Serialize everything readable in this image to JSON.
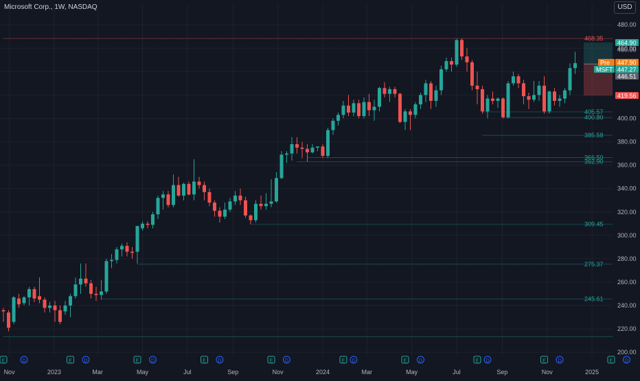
{
  "header": {
    "title": "Microsoft Corp., 1W, NASDAQ",
    "currency": "USD"
  },
  "colors": {
    "background": "#131722",
    "up": "#26a69a",
    "down": "#ef5350",
    "grid": "#1e222d",
    "axis_text": "#b2b5be",
    "premarket": "#f57f17",
    "ticker_badge": "#26a69a",
    "gray_badge": "#5d606b"
  },
  "chart_data": {
    "type": "candlestick",
    "title": "Microsoft Corp., 1W, NASDAQ",
    "ylim": [
      196,
      486
    ],
    "y_ticks": [
      200,
      220,
      240,
      260,
      280,
      300,
      320,
      340,
      360,
      380,
      400,
      420,
      440,
      460,
      480
    ],
    "x_tick_labels": [
      "Nov",
      "2023",
      "Mar",
      "May",
      "Jul",
      "Sep",
      "Nov",
      "2024",
      "Mar",
      "May",
      "Jul",
      "Sep",
      "Nov",
      "2025"
    ],
    "x_tick_dates": [
      "2022-11-01",
      "2023-01-01",
      "2023-03-01",
      "2023-05-01",
      "2023-07-01",
      "2023-09-01",
      "2023-11-01",
      "2024-01-01",
      "2024-03-01",
      "2024-05-01",
      "2024-07-01",
      "2024-09-01",
      "2024-11-01",
      "2025-01-01"
    ],
    "x_range": [
      "2022-10-24",
      "2025-02-24"
    ],
    "candles": [
      {
        "date": "2022-10-24",
        "o": 236.0,
        "h": 238.0,
        "l": 226.0,
        "c": 235.0
      },
      {
        "date": "2022-10-31",
        "o": 234.0,
        "h": 236.0,
        "l": 218.0,
        "c": 221.0
      },
      {
        "date": "2022-11-07",
        "o": 226.0,
        "h": 248.0,
        "l": 224.0,
        "c": 247.0
      },
      {
        "date": "2022-11-14",
        "o": 246.0,
        "h": 250.0,
        "l": 238.0,
        "c": 241.0
      },
      {
        "date": "2022-11-21",
        "o": 242.0,
        "h": 248.0,
        "l": 240.0,
        "c": 247.0
      },
      {
        "date": "2022-11-28",
        "o": 247.0,
        "h": 256.0,
        "l": 240.0,
        "c": 254.0
      },
      {
        "date": "2022-12-05",
        "o": 254.0,
        "h": 256.0,
        "l": 243.0,
        "c": 246.0
      },
      {
        "date": "2022-12-12",
        "o": 248.0,
        "h": 264.0,
        "l": 242.0,
        "c": 245.0
      },
      {
        "date": "2022-12-19",
        "o": 245.0,
        "h": 247.0,
        "l": 234.0,
        "c": 238.0
      },
      {
        "date": "2022-12-26",
        "o": 238.0,
        "h": 243.0,
        "l": 234.0,
        "c": 240.0
      },
      {
        "date": "2023-01-02",
        "o": 240.0,
        "h": 244.0,
        "l": 226.0,
        "c": 236.0
      },
      {
        "date": "2023-01-09",
        "o": 236.0,
        "h": 240.0,
        "l": 224.0,
        "c": 226.0
      },
      {
        "date": "2023-01-16",
        "o": 235.0,
        "h": 244.0,
        "l": 232.0,
        "c": 240.0
      },
      {
        "date": "2023-01-23",
        "o": 240.0,
        "h": 250.0,
        "l": 230.0,
        "c": 248.0
      },
      {
        "date": "2023-01-30",
        "o": 248.0,
        "h": 264.0,
        "l": 246.0,
        "c": 258.0
      },
      {
        "date": "2023-02-06",
        "o": 258.0,
        "h": 276.0,
        "l": 250.0,
        "c": 263.0
      },
      {
        "date": "2023-02-13",
        "o": 263.0,
        "h": 276.0,
        "l": 256.0,
        "c": 259.0
      },
      {
        "date": "2023-02-20",
        "o": 259.0,
        "h": 262.0,
        "l": 246.0,
        "c": 250.0
      },
      {
        "date": "2023-02-27",
        "o": 250.0,
        "h": 256.0,
        "l": 244.0,
        "c": 249.0
      },
      {
        "date": "2023-03-06",
        "o": 249.0,
        "h": 262.0,
        "l": 245.0,
        "c": 252.0
      },
      {
        "date": "2023-03-13",
        "o": 252.0,
        "h": 280.0,
        "l": 250.0,
        "c": 278.0
      },
      {
        "date": "2023-03-20",
        "o": 278.0,
        "h": 284.0,
        "l": 272.0,
        "c": 279.0
      },
      {
        "date": "2023-03-27",
        "o": 279.0,
        "h": 290.0,
        "l": 276.0,
        "c": 288.0
      },
      {
        "date": "2023-04-03",
        "o": 288.0,
        "h": 293.0,
        "l": 282.0,
        "c": 291.0
      },
      {
        "date": "2023-04-10",
        "o": 291.0,
        "h": 294.0,
        "l": 282.0,
        "c": 286.0
      },
      {
        "date": "2023-04-17",
        "o": 286.0,
        "h": 290.0,
        "l": 280.0,
        "c": 285.0
      },
      {
        "date": "2023-04-24",
        "o": 286.0,
        "h": 308.0,
        "l": 276.0,
        "c": 308.0
      },
      {
        "date": "2023-05-01",
        "o": 306.0,
        "h": 312.0,
        "l": 304.0,
        "c": 310.0
      },
      {
        "date": "2023-05-08",
        "o": 310.0,
        "h": 312.0,
        "l": 306.0,
        "c": 309.0
      },
      {
        "date": "2023-05-15",
        "o": 309.0,
        "h": 320.0,
        "l": 306.0,
        "c": 318.0
      },
      {
        "date": "2023-05-22",
        "o": 318.0,
        "h": 334.0,
        "l": 314.0,
        "c": 332.0
      },
      {
        "date": "2023-05-29",
        "o": 332.0,
        "h": 338.0,
        "l": 322.0,
        "c": 335.0
      },
      {
        "date": "2023-06-05",
        "o": 335.0,
        "h": 338.0,
        "l": 324.0,
        "c": 326.0
      },
      {
        "date": "2023-06-12",
        "o": 326.0,
        "h": 352.0,
        "l": 324.0,
        "c": 343.0
      },
      {
        "date": "2023-06-19",
        "o": 343.0,
        "h": 350.0,
        "l": 333.0,
        "c": 334.0
      },
      {
        "date": "2023-06-26",
        "o": 334.0,
        "h": 345.0,
        "l": 330.0,
        "c": 344.0
      },
      {
        "date": "2023-07-03",
        "o": 344.0,
        "h": 346.0,
        "l": 334.0,
        "c": 335.0
      },
      {
        "date": "2023-07-10",
        "o": 335.0,
        "h": 365.0,
        "l": 330.0,
        "c": 346.0
      },
      {
        "date": "2023-07-17",
        "o": 346.0,
        "h": 350.0,
        "l": 340.0,
        "c": 343.0
      },
      {
        "date": "2023-07-24",
        "o": 343.0,
        "h": 346.0,
        "l": 330.0,
        "c": 337.0
      },
      {
        "date": "2023-07-31",
        "o": 337.0,
        "h": 340.0,
        "l": 325.0,
        "c": 328.0
      },
      {
        "date": "2023-08-07",
        "o": 328.0,
        "h": 330.0,
        "l": 316.0,
        "c": 321.0
      },
      {
        "date": "2023-08-14",
        "o": 321.0,
        "h": 324.0,
        "l": 311.0,
        "c": 316.0
      },
      {
        "date": "2023-08-21",
        "o": 316.0,
        "h": 328.0,
        "l": 314.0,
        "c": 322.0
      },
      {
        "date": "2023-08-28",
        "o": 322.0,
        "h": 332.0,
        "l": 320.0,
        "c": 329.0
      },
      {
        "date": "2023-09-04",
        "o": 329.0,
        "h": 338.0,
        "l": 326.0,
        "c": 334.0
      },
      {
        "date": "2023-09-11",
        "o": 334.0,
        "h": 340.0,
        "l": 326.0,
        "c": 330.0
      },
      {
        "date": "2023-09-18",
        "o": 330.0,
        "h": 333.0,
        "l": 315.0,
        "c": 317.0
      },
      {
        "date": "2023-09-25",
        "o": 317.0,
        "h": 318.0,
        "l": 309.5,
        "c": 313.0
      },
      {
        "date": "2023-10-02",
        "o": 313.0,
        "h": 330.0,
        "l": 311.0,
        "c": 327.0
      },
      {
        "date": "2023-10-09",
        "o": 327.0,
        "h": 334.0,
        "l": 322.0,
        "c": 325.0
      },
      {
        "date": "2023-10-16",
        "o": 325.0,
        "h": 336.0,
        "l": 322.0,
        "c": 327.0
      },
      {
        "date": "2023-10-23",
        "o": 327.0,
        "h": 348.0,
        "l": 324.0,
        "c": 329.0
      },
      {
        "date": "2023-10-30",
        "o": 329.0,
        "h": 354.0,
        "l": 328.0,
        "c": 349.0
      },
      {
        "date": "2023-11-06",
        "o": 349.0,
        "h": 372.0,
        "l": 348.0,
        "c": 369.0
      },
      {
        "date": "2023-11-13",
        "o": 369.0,
        "h": 372.0,
        "l": 362.0,
        "c": 370.0
      },
      {
        "date": "2023-11-20",
        "o": 370.0,
        "h": 384.0,
        "l": 364.0,
        "c": 378.0
      },
      {
        "date": "2023-11-27",
        "o": 378.0,
        "h": 384.0,
        "l": 370.0,
        "c": 375.0
      },
      {
        "date": "2023-12-04",
        "o": 375.0,
        "h": 380.0,
        "l": 366.0,
        "c": 374.0
      },
      {
        "date": "2023-12-11",
        "o": 374.0,
        "h": 378.0,
        "l": 363.0,
        "c": 371.0
      },
      {
        "date": "2023-12-18",
        "o": 371.0,
        "h": 378.0,
        "l": 370.0,
        "c": 375.0
      },
      {
        "date": "2023-12-25",
        "o": 375.0,
        "h": 376.0,
        "l": 372.0,
        "c": 376.0
      },
      {
        "date": "2024-01-01",
        "o": 376.0,
        "h": 378.0,
        "l": 366.0,
        "c": 368.0
      },
      {
        "date": "2024-01-08",
        "o": 368.0,
        "h": 392.0,
        "l": 366.0,
        "c": 390.0
      },
      {
        "date": "2024-01-15",
        "o": 390.0,
        "h": 400.0,
        "l": 386.0,
        "c": 398.0
      },
      {
        "date": "2024-01-22",
        "o": 398.0,
        "h": 405.0,
        "l": 394.0,
        "c": 403.0
      },
      {
        "date": "2024-01-29",
        "o": 403.0,
        "h": 415.0,
        "l": 400.0,
        "c": 411.0
      },
      {
        "date": "2024-02-05",
        "o": 411.0,
        "h": 420.0,
        "l": 402.0,
        "c": 405.0
      },
      {
        "date": "2024-02-12",
        "o": 405.0,
        "h": 416.0,
        "l": 402.0,
        "c": 413.0
      },
      {
        "date": "2024-02-19",
        "o": 413.0,
        "h": 416.0,
        "l": 400.0,
        "c": 402.0
      },
      {
        "date": "2024-02-26",
        "o": 402.0,
        "h": 418.0,
        "l": 400.0,
        "c": 414.0
      },
      {
        "date": "2024-03-04",
        "o": 414.0,
        "h": 421.0,
        "l": 402.0,
        "c": 407.0
      },
      {
        "date": "2024-03-11",
        "o": 407.0,
        "h": 416.0,
        "l": 398.0,
        "c": 410.0
      },
      {
        "date": "2024-03-18",
        "o": 410.0,
        "h": 427.0,
        "l": 406.0,
        "c": 426.0
      },
      {
        "date": "2024-03-25",
        "o": 426.0,
        "h": 431.0,
        "l": 418.0,
        "c": 421.0
      },
      {
        "date": "2024-04-01",
        "o": 421.0,
        "h": 427.0,
        "l": 414.0,
        "c": 425.0
      },
      {
        "date": "2024-04-08",
        "o": 425.0,
        "h": 427.0,
        "l": 418.0,
        "c": 421.0
      },
      {
        "date": "2024-04-15",
        "o": 421.0,
        "h": 422.0,
        "l": 396.0,
        "c": 397.0
      },
      {
        "date": "2024-04-22",
        "o": 397.0,
        "h": 408.0,
        "l": 390.0,
        "c": 406.0
      },
      {
        "date": "2024-04-29",
        "o": 406.0,
        "h": 408.0,
        "l": 390.0,
        "c": 403.0
      },
      {
        "date": "2024-05-06",
        "o": 403.0,
        "h": 414.0,
        "l": 400.0,
        "c": 412.0
      },
      {
        "date": "2024-05-13",
        "o": 412.0,
        "h": 422.0,
        "l": 408.0,
        "c": 420.0
      },
      {
        "date": "2024-05-20",
        "o": 420.0,
        "h": 433.0,
        "l": 414.0,
        "c": 430.0
      },
      {
        "date": "2024-05-27",
        "o": 430.0,
        "h": 432.0,
        "l": 408.0,
        "c": 415.0
      },
      {
        "date": "2024-06-03",
        "o": 415.0,
        "h": 428.0,
        "l": 410.0,
        "c": 424.0
      },
      {
        "date": "2024-06-10",
        "o": 424.0,
        "h": 445.0,
        "l": 420.0,
        "c": 442.0
      },
      {
        "date": "2024-06-17",
        "o": 442.0,
        "h": 452.0,
        "l": 440.0,
        "c": 449.0
      },
      {
        "date": "2024-06-24",
        "o": 449.0,
        "h": 452.0,
        "l": 440.0,
        "c": 446.0
      },
      {
        "date": "2024-07-01",
        "o": 446.0,
        "h": 468.0,
        "l": 444.0,
        "c": 467.0
      },
      {
        "date": "2024-07-08",
        "o": 467.0,
        "h": 468.3,
        "l": 450.0,
        "c": 453.0
      },
      {
        "date": "2024-07-15",
        "o": 453.0,
        "h": 460.0,
        "l": 440.0,
        "c": 448.0
      },
      {
        "date": "2024-07-22",
        "o": 448.0,
        "h": 450.0,
        "l": 424.0,
        "c": 428.0
      },
      {
        "date": "2024-07-29",
        "o": 428.0,
        "h": 440.0,
        "l": 412.0,
        "c": 425.0
      },
      {
        "date": "2024-08-05",
        "o": 425.0,
        "h": 428.0,
        "l": 404.0,
        "c": 406.0
      },
      {
        "date": "2024-08-12",
        "o": 406.0,
        "h": 420.0,
        "l": 400.0,
        "c": 417.0
      },
      {
        "date": "2024-08-19",
        "o": 417.0,
        "h": 423.0,
        "l": 412.0,
        "c": 415.0
      },
      {
        "date": "2024-08-26",
        "o": 415.0,
        "h": 418.0,
        "l": 409.0,
        "c": 417.0
      },
      {
        "date": "2024-09-02",
        "o": 417.0,
        "h": 418.0,
        "l": 400.0,
        "c": 401.0
      },
      {
        "date": "2024-09-09",
        "o": 401.0,
        "h": 432.0,
        "l": 400.0,
        "c": 430.0
      },
      {
        "date": "2024-09-16",
        "o": 430.0,
        "h": 440.0,
        "l": 428.0,
        "c": 436.0
      },
      {
        "date": "2024-09-23",
        "o": 436.0,
        "h": 438.0,
        "l": 426.0,
        "c": 430.0
      },
      {
        "date": "2024-09-30",
        "o": 430.0,
        "h": 433.0,
        "l": 412.0,
        "c": 419.0
      },
      {
        "date": "2024-10-07",
        "o": 419.0,
        "h": 422.0,
        "l": 408.0,
        "c": 416.0
      },
      {
        "date": "2024-10-14",
        "o": 416.0,
        "h": 432.0,
        "l": 414.0,
        "c": 420.0
      },
      {
        "date": "2024-10-21",
        "o": 420.0,
        "h": 432.0,
        "l": 415.0,
        "c": 428.0
      },
      {
        "date": "2024-10-28",
        "o": 428.0,
        "h": 436.0,
        "l": 404.0,
        "c": 406.0
      },
      {
        "date": "2024-11-04",
        "o": 406.0,
        "h": 424.0,
        "l": 404.0,
        "c": 423.0
      },
      {
        "date": "2024-11-11",
        "o": 423.0,
        "h": 426.0,
        "l": 411.0,
        "c": 415.0
      },
      {
        "date": "2024-11-18",
        "o": 415.0,
        "h": 420.0,
        "l": 410.0,
        "c": 417.0
      },
      {
        "date": "2024-11-25",
        "o": 417.0,
        "h": 426.0,
        "l": 413.0,
        "c": 424.0
      },
      {
        "date": "2024-12-02",
        "o": 424.0,
        "h": 447.0,
        "l": 420.0,
        "c": 443.0
      },
      {
        "date": "2024-12-09",
        "o": 443.0,
        "h": 457.0,
        "l": 438.0,
        "c": 447.27
      }
    ],
    "horizontal_levels": [
      {
        "value": 468.35,
        "label": "468.35",
        "color": "#ef5350",
        "from": "2022-10-24"
      },
      {
        "value": 405.57,
        "label": "405.57",
        "color": "#26a69a",
        "from": "2024-08-05"
      },
      {
        "value": 400.8,
        "label": "400.80",
        "color": "#26a69a",
        "from": "2024-09-02"
      },
      {
        "value": 385.58,
        "label": "385.58",
        "color": "#26a69a",
        "from": "2024-08-05"
      },
      {
        "value": 366.5,
        "label": "366.50",
        "color": "#26a69a",
        "from": "2023-12-11"
      },
      {
        "value": 362.9,
        "label": "362.90",
        "color": "#26a69a",
        "from": "2023-11-27"
      },
      {
        "value": 309.45,
        "label": "309.45",
        "color": "#26a69a",
        "from": "2023-09-25"
      },
      {
        "value": 275.37,
        "label": "275.37",
        "color": "#26a69a",
        "from": "2023-04-24"
      },
      {
        "value": 245.61,
        "label": "245.61",
        "color": "#26a69a",
        "from": "2023-03-06"
      },
      {
        "value": 213.43,
        "label": "",
        "color": "#26a69a",
        "from": "2022-10-24"
      }
    ],
    "position_tool": {
      "from": "2024-12-16",
      "to": "2025-02-24",
      "entry": 446.51,
      "target": 464.9,
      "stop": 419.56
    },
    "price_badges": [
      {
        "value": 464.9,
        "label": "464.90",
        "color": "#26a69a",
        "prefix": ""
      },
      {
        "value": 460.0,
        "label": "460.00",
        "color": "",
        "prefix": ""
      },
      {
        "value": 447.9,
        "label": "447.90",
        "color": "#f57f17",
        "prefix": "Pre"
      },
      {
        "value": 447.27,
        "label": "447.27",
        "color": "#26a69a",
        "prefix": "MSFT"
      },
      {
        "value": 446.51,
        "label": "446.51",
        "color": "#5d606b",
        "prefix": ""
      },
      {
        "value": 419.56,
        "label": "419.56",
        "color": "#ef5350",
        "prefix": ""
      }
    ],
    "events": [
      {
        "date": "2022-10-24",
        "type": "E"
      },
      {
        "date": "2022-11-21",
        "type": "D"
      },
      {
        "date": "2023-01-23",
        "type": "E"
      },
      {
        "date": "2023-02-13",
        "type": "D"
      },
      {
        "date": "2023-04-24",
        "type": "E"
      },
      {
        "date": "2023-05-15",
        "type": "D"
      },
      {
        "date": "2023-07-24",
        "type": "E"
      },
      {
        "date": "2023-08-14",
        "type": "D"
      },
      {
        "date": "2023-10-23",
        "type": "E"
      },
      {
        "date": "2023-11-13",
        "type": "D"
      },
      {
        "date": "2024-01-29",
        "type": "E"
      },
      {
        "date": "2024-02-12",
        "type": "D"
      },
      {
        "date": "2024-04-22",
        "type": "E"
      },
      {
        "date": "2024-05-13",
        "type": "D"
      },
      {
        "date": "2024-07-29",
        "type": "E"
      },
      {
        "date": "2024-08-12",
        "type": "D"
      },
      {
        "date": "2024-10-28",
        "type": "E"
      },
      {
        "date": "2024-11-18",
        "type": "D"
      },
      {
        "date": "2025-01-27",
        "type": "E"
      },
      {
        "date": "2025-02-17",
        "type": "D"
      }
    ]
  }
}
